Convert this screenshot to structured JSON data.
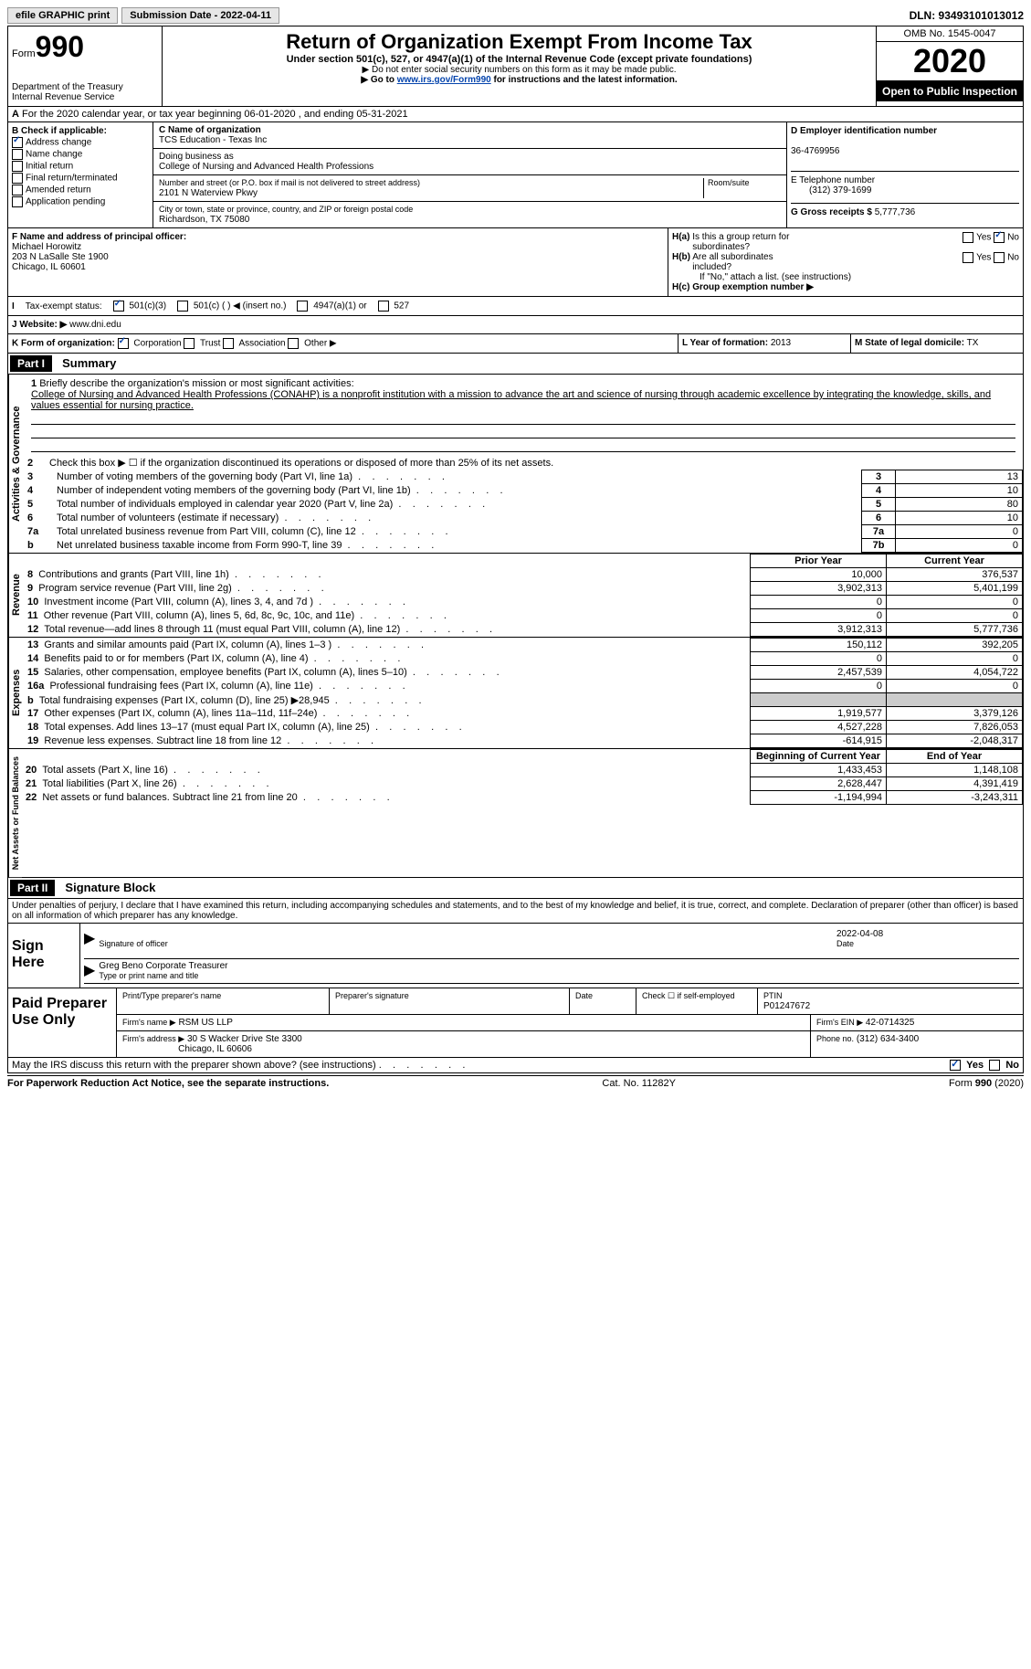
{
  "top": {
    "efile": "efile GRAPHIC print",
    "submission": "Submission Date - 2022-04-11",
    "dln": "DLN: 93493101013012"
  },
  "header": {
    "form_prefix": "Form",
    "form_num": "990",
    "dept": "Department of the Treasury",
    "irs": "Internal Revenue Service",
    "title": "Return of Organization Exempt From Income Tax",
    "sub1": "Under section 501(c), 527, or 4947(a)(1) of the Internal Revenue Code (except private foundations)",
    "sub2": "▶ Do not enter social security numbers on this form as it may be made public.",
    "sub3_pre": "▶ Go to ",
    "sub3_link": "www.irs.gov/Form990",
    "sub3_post": " for instructions and the latest information.",
    "omb": "OMB No. 1545-0047",
    "year": "2020",
    "open": "Open to Public Inspection"
  },
  "row_a": "For the 2020 calendar year, or tax year beginning 06-01-2020    , and ending 05-31-2021",
  "b": {
    "label": "B Check if applicable:",
    "items": [
      "Address change",
      "Name change",
      "Initial return",
      "Final return/terminated",
      "Amended return",
      "Application pending"
    ]
  },
  "c": {
    "name_label": "C Name of organization",
    "name": "TCS Education - Texas Inc",
    "dba_label": "Doing business as",
    "dba": "College of Nursing and Advanced Health Professions",
    "addr_label": "Number and street (or P.O. box if mail is not delivered to street address)",
    "room_label": "Room/suite",
    "addr": "2101 N Waterview Pkwy",
    "city_label": "City or town, state or province, country, and ZIP or foreign postal code",
    "city": "Richardson, TX  75080"
  },
  "d": {
    "ein_label": "D Employer identification number",
    "ein": "36-4769956",
    "phone_label": "E Telephone number",
    "phone": "(312) 379-1699",
    "gross_label": "G Gross receipts $",
    "gross": "5,777,736"
  },
  "f": {
    "label": "F  Name and address of principal officer:",
    "name": "Michael Horowitz",
    "addr1": "203 N LaSalle Ste 1900",
    "addr2": "Chicago, IL  60601"
  },
  "h": {
    "a_label": "H(a)  Is this a group return for subordinates?",
    "b_label": "H(b)  Are all subordinates included?",
    "b_note": "If \"No,\" attach a list. (see instructions)",
    "c_label": "H(c)  Group exemption number ▶",
    "yes": "Yes",
    "no": "No"
  },
  "i": {
    "label": "Tax-exempt status:",
    "opt1": "501(c)(3)",
    "opt2": "501(c) (  ) ◀ (insert no.)",
    "opt3": "4947(a)(1) or",
    "opt4": "527"
  },
  "j": {
    "label": "J  Website: ▶",
    "val": "www.dni.edu"
  },
  "k": {
    "label": "K Form of organization:",
    "corp": "Corporation",
    "trust": "Trust",
    "assoc": "Association",
    "other": "Other ▶"
  },
  "l": {
    "label": "L Year of formation:",
    "val": "2013"
  },
  "m": {
    "label": "M State of legal domicile:",
    "val": "TX"
  },
  "part1": {
    "header": "Part I",
    "title": "Summary",
    "q1": "Briefly describe the organization's mission or most significant activities:",
    "mission": "College of Nursing and Advanced Health Professions (CONAHP) is a nonprofit institution with a mission to advance the art and science of nursing through academic excellence by integrating the knowledge, skills, and values essential for nursing practice.",
    "q2": "Check this box ▶ ☐  if the organization discontinued its operations or disposed of more than 25% of its net assets.",
    "vert_gov": "Activities & Governance",
    "vert_rev": "Revenue",
    "vert_exp": "Expenses",
    "vert_net": "Net Assets or Fund Balances"
  },
  "gov_lines": [
    {
      "n": "3",
      "t": "Number of voting members of the governing body (Part VI, line 1a)",
      "box": "3",
      "v": "13"
    },
    {
      "n": "4",
      "t": "Number of independent voting members of the governing body (Part VI, line 1b)",
      "box": "4",
      "v": "10"
    },
    {
      "n": "5",
      "t": "Total number of individuals employed in calendar year 2020 (Part V, line 2a)",
      "box": "5",
      "v": "80"
    },
    {
      "n": "6",
      "t": "Total number of volunteers (estimate if necessary)",
      "box": "6",
      "v": "10"
    },
    {
      "n": "7a",
      "t": "Total unrelated business revenue from Part VIII, column (C), line 12",
      "box": "7a",
      "v": "0"
    },
    {
      "n": "b",
      "t": "Net unrelated business taxable income from Form 990-T, line 39",
      "box": "7b",
      "v": "0"
    }
  ],
  "fin_headers": {
    "prior": "Prior Year",
    "current": "Current Year",
    "beg": "Beginning of Current Year",
    "end": "End of Year"
  },
  "rev_lines": [
    {
      "n": "8",
      "t": "Contributions and grants (Part VIII, line 1h)",
      "p": "10,000",
      "c": "376,537"
    },
    {
      "n": "9",
      "t": "Program service revenue (Part VIII, line 2g)",
      "p": "3,902,313",
      "c": "5,401,199"
    },
    {
      "n": "10",
      "t": "Investment income (Part VIII, column (A), lines 3, 4, and 7d )",
      "p": "0",
      "c": "0"
    },
    {
      "n": "11",
      "t": "Other revenue (Part VIII, column (A), lines 5, 6d, 8c, 9c, 10c, and 11e)",
      "p": "0",
      "c": "0"
    },
    {
      "n": "12",
      "t": "Total revenue—add lines 8 through 11 (must equal Part VIII, column (A), line 12)",
      "p": "3,912,313",
      "c": "5,777,736"
    }
  ],
  "exp_lines": [
    {
      "n": "13",
      "t": "Grants and similar amounts paid (Part IX, column (A), lines 1–3 )",
      "p": "150,112",
      "c": "392,205"
    },
    {
      "n": "14",
      "t": "Benefits paid to or for members (Part IX, column (A), line 4)",
      "p": "0",
      "c": "0"
    },
    {
      "n": "15",
      "t": "Salaries, other compensation, employee benefits (Part IX, column (A), lines 5–10)",
      "p": "2,457,539",
      "c": "4,054,722"
    },
    {
      "n": "16a",
      "t": "Professional fundraising fees (Part IX, column (A), line 11e)",
      "p": "0",
      "c": "0"
    },
    {
      "n": "b",
      "t": "Total fundraising expenses (Part IX, column (D), line 25) ▶28,945",
      "p": "",
      "c": "",
      "shaded": true
    },
    {
      "n": "17",
      "t": "Other expenses (Part IX, column (A), lines 11a–11d, 11f–24e)",
      "p": "1,919,577",
      "c": "3,379,126"
    },
    {
      "n": "18",
      "t": "Total expenses. Add lines 13–17 (must equal Part IX, column (A), line 25)",
      "p": "4,527,228",
      "c": "7,826,053"
    },
    {
      "n": "19",
      "t": "Revenue less expenses. Subtract line 18 from line 12",
      "p": "-614,915",
      "c": "-2,048,317"
    }
  ],
  "net_lines": [
    {
      "n": "20",
      "t": "Total assets (Part X, line 16)",
      "p": "1,433,453",
      "c": "1,148,108"
    },
    {
      "n": "21",
      "t": "Total liabilities (Part X, line 26)",
      "p": "2,628,447",
      "c": "4,391,419"
    },
    {
      "n": "22",
      "t": "Net assets or fund balances. Subtract line 21 from line 20",
      "p": "-1,194,994",
      "c": "-3,243,311"
    }
  ],
  "part2": {
    "header": "Part II",
    "title": "Signature Block",
    "declare": "Under penalties of perjury, I declare that I have examined this return, including accompanying schedules and statements, and to the best of my knowledge and belief, it is true, correct, and complete. Declaration of preparer (other than officer) is based on all information of which preparer has any knowledge."
  },
  "sign": {
    "label": "Sign Here",
    "sig_label": "Signature of officer",
    "date_label": "Date",
    "date": "2022-04-08",
    "name": "Greg Beno  Corporate Treasurer",
    "name_label": "Type or print name and title"
  },
  "paid": {
    "label": "Paid Preparer Use Only",
    "print_label": "Print/Type preparer's name",
    "sig_label": "Preparer's signature",
    "date_label": "Date",
    "check_label": "Check ☐ if self-employed",
    "ptin_label": "PTIN",
    "ptin": "P01247672",
    "firm_name_label": "Firm's name    ▶",
    "firm_name": "RSM US LLP",
    "firm_ein_label": "Firm's EIN ▶",
    "firm_ein": "42-0714325",
    "firm_addr_label": "Firm's address ▶",
    "firm_addr": "30 S Wacker Drive Ste 3300",
    "firm_city": "Chicago, IL  60606",
    "phone_label": "Phone no.",
    "phone": "(312) 634-3400"
  },
  "footer": {
    "discuss": "May the IRS discuss this return with the preparer shown above? (see instructions)",
    "paperwork": "For Paperwork Reduction Act Notice, see the separate instructions.",
    "cat": "Cat. No. 11282Y",
    "form": "Form 990 (2020)",
    "yes": "Yes",
    "no": "No"
  }
}
